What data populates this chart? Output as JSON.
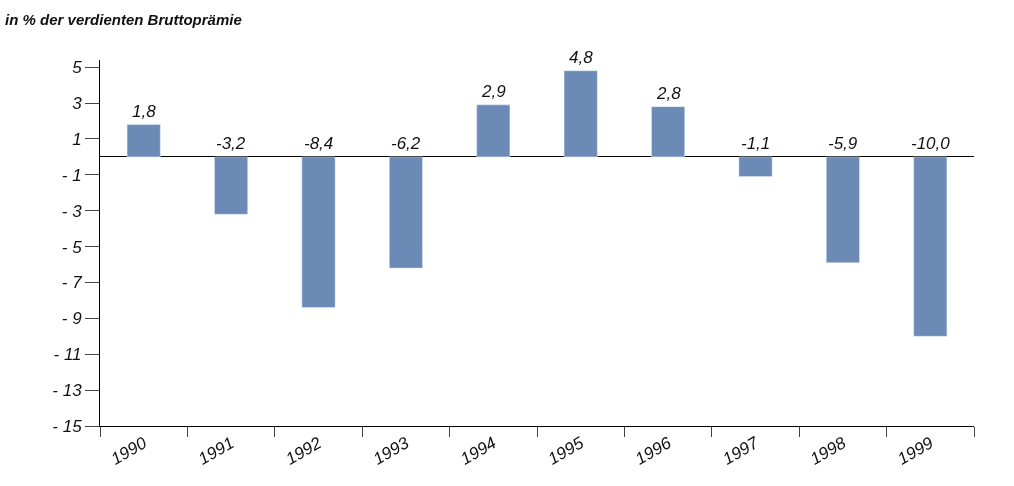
{
  "chart_data": {
    "type": "bar",
    "title": "in % der verdienten Bruttoprämie",
    "categories": [
      "1990",
      "1991",
      "1992",
      "1993",
      "1994",
      "1995",
      "1996",
      "1997",
      "1998",
      "1999"
    ],
    "values": [
      1.8,
      -3.2,
      -8.4,
      -6.2,
      2.9,
      4.8,
      2.8,
      -1.1,
      -5.9,
      -10.0
    ],
    "value_labels": [
      "1,8",
      "-3,2",
      "-8,4",
      "-6,2",
      "2,9",
      "4,8",
      "2,8",
      "-1,1",
      "-5,9",
      "-10,0"
    ],
    "color": "#6b8ab5",
    "ylim": [
      -15,
      5.4
    ],
    "yticks": [
      5,
      3,
      1,
      {
        "value": -1,
        "label": "- 1"
      },
      {
        "value": -3,
        "label": "- 3"
      },
      {
        "value": -5,
        "label": "- 5"
      },
      {
        "value": -7,
        "label": "- 7"
      },
      {
        "value": -9,
        "label": "- 9"
      },
      {
        "value": -11,
        "label": "- 11"
      },
      {
        "value": -13,
        "label": "- 13"
      },
      {
        "value": -15,
        "label": "- 15"
      }
    ],
    "legend": false
  }
}
